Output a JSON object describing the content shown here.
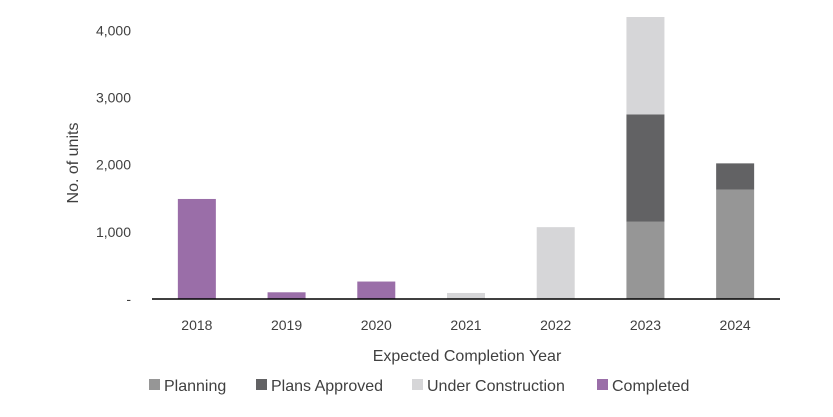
{
  "chart_data": {
    "type": "bar",
    "stacked": true,
    "title": "",
    "xlabel": "Expected Completion Year",
    "ylabel": "No. of units",
    "categories": [
      "2018",
      "2019",
      "2020",
      "2021",
      "2022",
      "2023",
      "2024"
    ],
    "ylim": [
      0,
      4200
    ],
    "yticks": [
      0,
      1000,
      2000,
      3000,
      4000
    ],
    "ytick_labels": [
      "-",
      "1,000",
      "2,000",
      "3,000",
      "4,000"
    ],
    "grid": false,
    "legend_position": "bottom",
    "series": [
      {
        "name": "Planning",
        "color": "#969696",
        "values": [
          0,
          0,
          0,
          0,
          0,
          1150,
          1630
        ]
      },
      {
        "name": "Plans Approved",
        "color": "#626264",
        "values": [
          0,
          0,
          0,
          0,
          0,
          1600,
          390
        ]
      },
      {
        "name": "Under Construction",
        "color": "#d6d6d8",
        "values": [
          0,
          0,
          0,
          90,
          1070,
          1450,
          0
        ]
      },
      {
        "name": "Completed",
        "color": "#9a6ea8",
        "values": [
          1490,
          100,
          260,
          0,
          0,
          0,
          0
        ]
      }
    ]
  }
}
